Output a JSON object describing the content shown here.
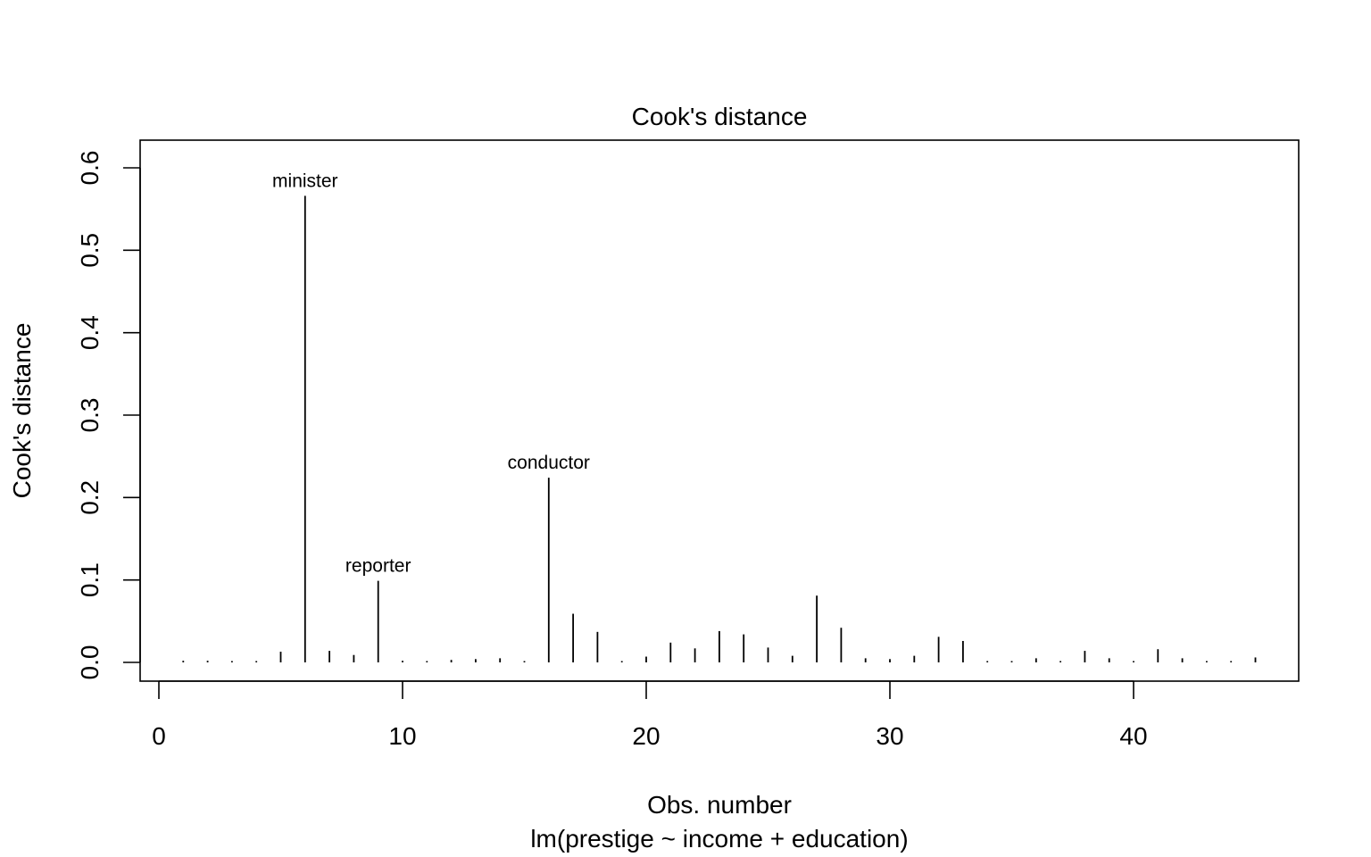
{
  "chart_data": {
    "type": "bar",
    "subtype": "spike",
    "title": "Cook's distance",
    "xlabel": "Obs. number",
    "subtitle": "lm(prestige ~ income + education)",
    "ylabel": "Cook's distance",
    "xlim": [
      0,
      46
    ],
    "ylim": [
      0,
      0.6
    ],
    "xticks": [
      0,
      10,
      20,
      30,
      40
    ],
    "yticks": [
      0.0,
      0.1,
      0.2,
      0.3,
      0.4,
      0.5,
      0.6
    ],
    "ytick_labels": [
      "0.0",
      "0.1",
      "0.2",
      "0.3",
      "0.4",
      "0.5",
      "0.6"
    ],
    "grid": false,
    "x": [
      1,
      2,
      3,
      4,
      5,
      6,
      7,
      8,
      9,
      10,
      11,
      12,
      13,
      14,
      15,
      16,
      17,
      18,
      19,
      20,
      21,
      22,
      23,
      24,
      25,
      26,
      27,
      28,
      29,
      30,
      31,
      32,
      33,
      34,
      35,
      36,
      37,
      38,
      39,
      40,
      41,
      42,
      43,
      44,
      45
    ],
    "values": [
      0.002,
      0.002,
      0.001,
      0.001,
      0.013,
      0.566,
      0.014,
      0.009,
      0.099,
      0.002,
      0.001,
      0.003,
      0.004,
      0.005,
      0.001,
      0.224,
      0.059,
      0.037,
      0.001,
      0.007,
      0.024,
      0.017,
      0.038,
      0.034,
      0.018,
      0.008,
      0.081,
      0.042,
      0.005,
      0.004,
      0.008,
      0.031,
      0.026,
      0.001,
      0.001,
      0.005,
      0.001,
      0.014,
      0.005,
      0.001,
      0.016,
      0.005,
      0.001,
      0.001,
      0.006
    ],
    "annotations": [
      {
        "x": 6,
        "label": "minister"
      },
      {
        "x": 9,
        "label": "reporter"
      },
      {
        "x": 16,
        "label": "conductor"
      }
    ]
  }
}
